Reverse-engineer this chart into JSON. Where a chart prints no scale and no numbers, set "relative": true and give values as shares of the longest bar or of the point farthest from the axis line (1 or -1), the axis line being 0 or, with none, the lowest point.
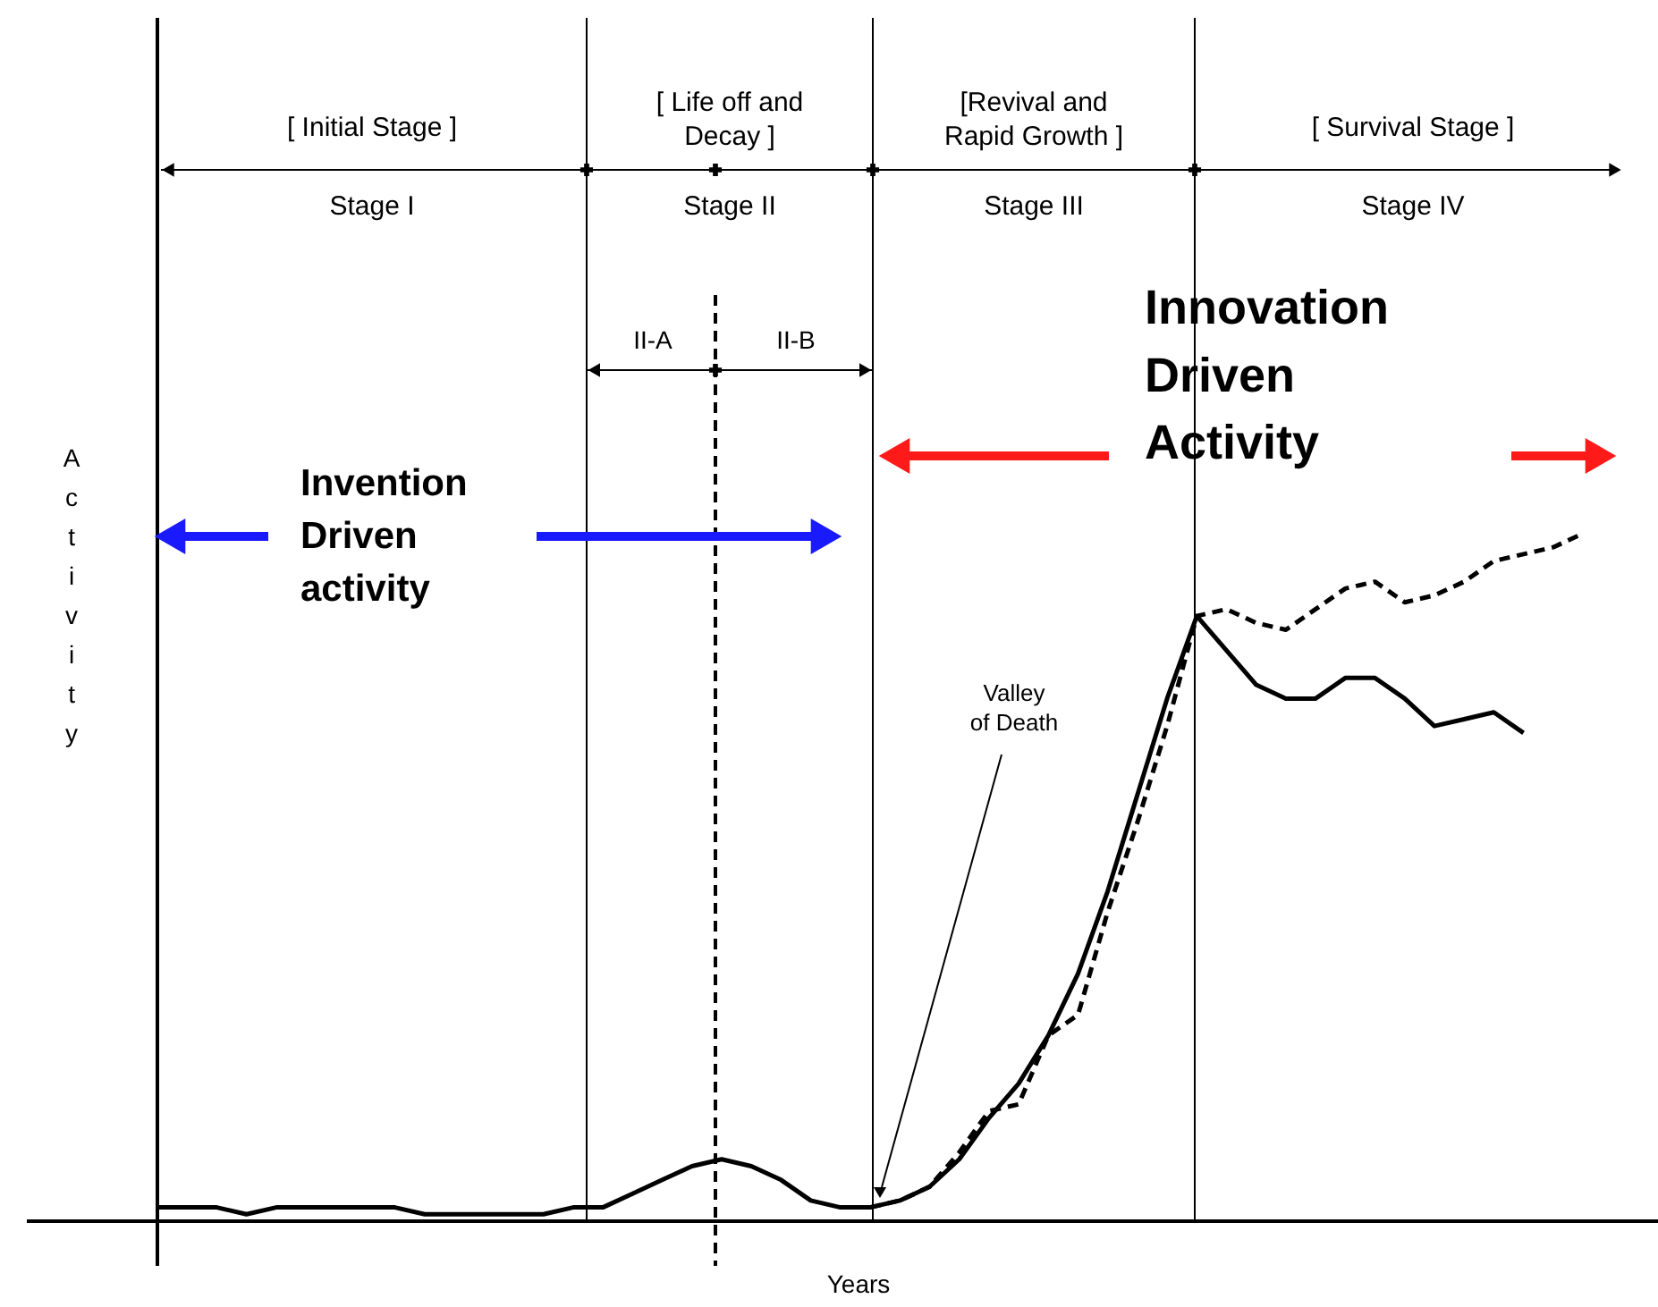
{
  "chart_data": {
    "type": "line",
    "relative": true,
    "xlabel": "Years",
    "ylabel": "Activity",
    "marker": "none",
    "categories": [
      null,
      null,
      null,
      null,
      null,
      null,
      null,
      null,
      null,
      null,
      null,
      null,
      null,
      null,
      null,
      null,
      null,
      null,
      null,
      null,
      null,
      null,
      null,
      null,
      null,
      null,
      null,
      null,
      null,
      null,
      null,
      null,
      null,
      null,
      null,
      null,
      null,
      null,
      null,
      null,
      null,
      null,
      null,
      null,
      null,
      null,
      null,
      null,
      null
    ],
    "series": [
      {
        "color": "#000000",
        "line_style": "solid",
        "values": [
          0.02,
          0.02,
          0.02,
          0.01,
          0.02,
          0.02,
          0.02,
          0.02,
          0.02,
          0.01,
          0.01,
          0.01,
          0.01,
          0.01,
          0.02,
          0.02,
          0.04,
          0.06,
          0.08,
          0.09,
          0.08,
          0.06,
          0.03,
          0.02,
          0.02,
          0.03,
          0.05,
          0.09,
          0.15,
          0.2,
          0.27,
          0.36,
          0.48,
          0.62,
          0.76,
          0.88,
          0.83,
          0.78,
          0.76,
          0.76,
          0.79,
          0.79,
          0.76,
          0.72,
          0.73,
          0.74,
          0.71,
          null,
          null
        ]
      },
      {
        "color": "#000000",
        "line_style": "dashed",
        "values": [
          null,
          null,
          null,
          null,
          null,
          null,
          null,
          null,
          null,
          null,
          null,
          null,
          null,
          null,
          null,
          null,
          null,
          null,
          null,
          null,
          null,
          null,
          null,
          null,
          0.02,
          0.03,
          0.05,
          0.1,
          0.16,
          0.17,
          0.27,
          0.3,
          0.45,
          0.58,
          0.72,
          0.88,
          0.89,
          0.87,
          0.86,
          0.89,
          0.92,
          0.93,
          0.9,
          0.91,
          0.93,
          0.96,
          0.97,
          0.98,
          1.0
        ]
      }
    ],
    "annotations": [
      "[ Initial Stage ]",
      "Stage I",
      "[ Life off and\nDecay ]",
      "Stage II",
      "[Revival and\nRapid Growth ]",
      "Stage III",
      "[ Survival Stage ]",
      "Stage IV",
      "II-A",
      "II-B",
      "Invention\nDriven\nactivity",
      "Innovation\nDriven\nActivity",
      "Valley\nof Death"
    ]
  }
}
